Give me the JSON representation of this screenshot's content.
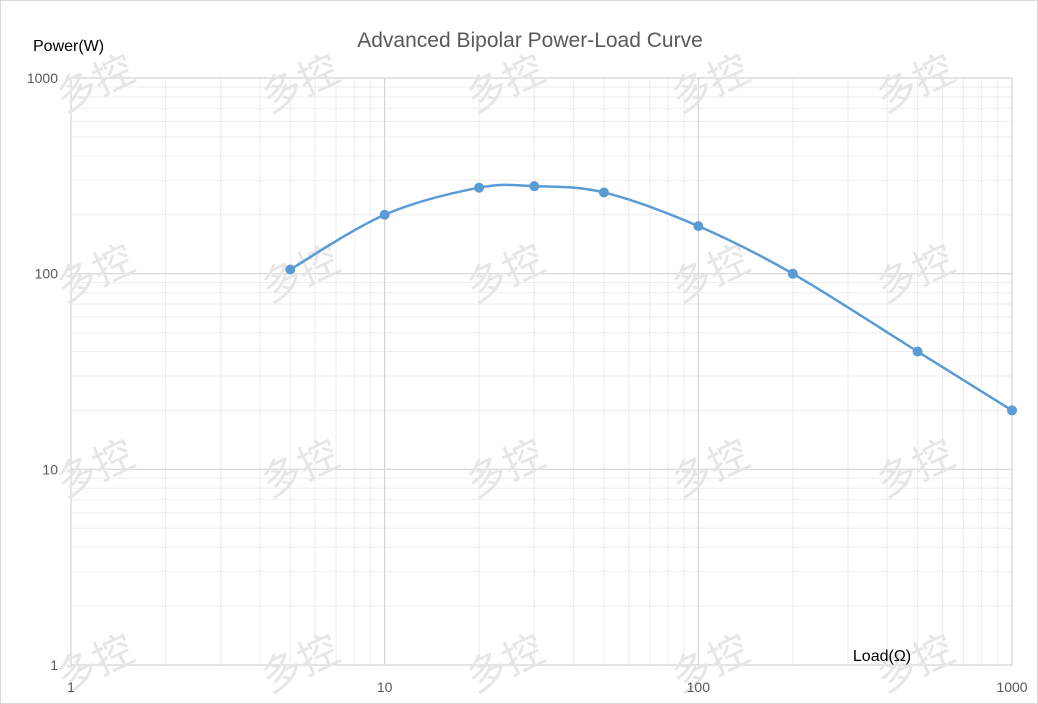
{
  "chart_data": {
    "type": "line",
    "title": "Advanced Bipolar Power-Load Curve",
    "ylabel": "Power(W)",
    "xlabel": "Load(Ω)",
    "x_scale": "log",
    "y_scale": "log",
    "xlim": [
      1,
      1000
    ],
    "ylim": [
      1,
      1000
    ],
    "x_ticks": [
      1,
      10,
      100,
      1000
    ],
    "y_ticks": [
      1,
      10,
      100,
      1000
    ],
    "x_tick_labels": [
      "1",
      "10",
      "100",
      "1000"
    ],
    "y_tick_labels": [
      "1",
      "10",
      "100",
      "1000"
    ],
    "grid": true,
    "series": [
      {
        "x": [
          5,
          10,
          20,
          30,
          50,
          100,
          200,
          500,
          1000
        ],
        "y": [
          105,
          200,
          275,
          280,
          260,
          175,
          100,
          40,
          20
        ],
        "color": "#5b9bd5",
        "marker": "circle",
        "smooth": true
      }
    ]
  },
  "watermark_text": "多控"
}
